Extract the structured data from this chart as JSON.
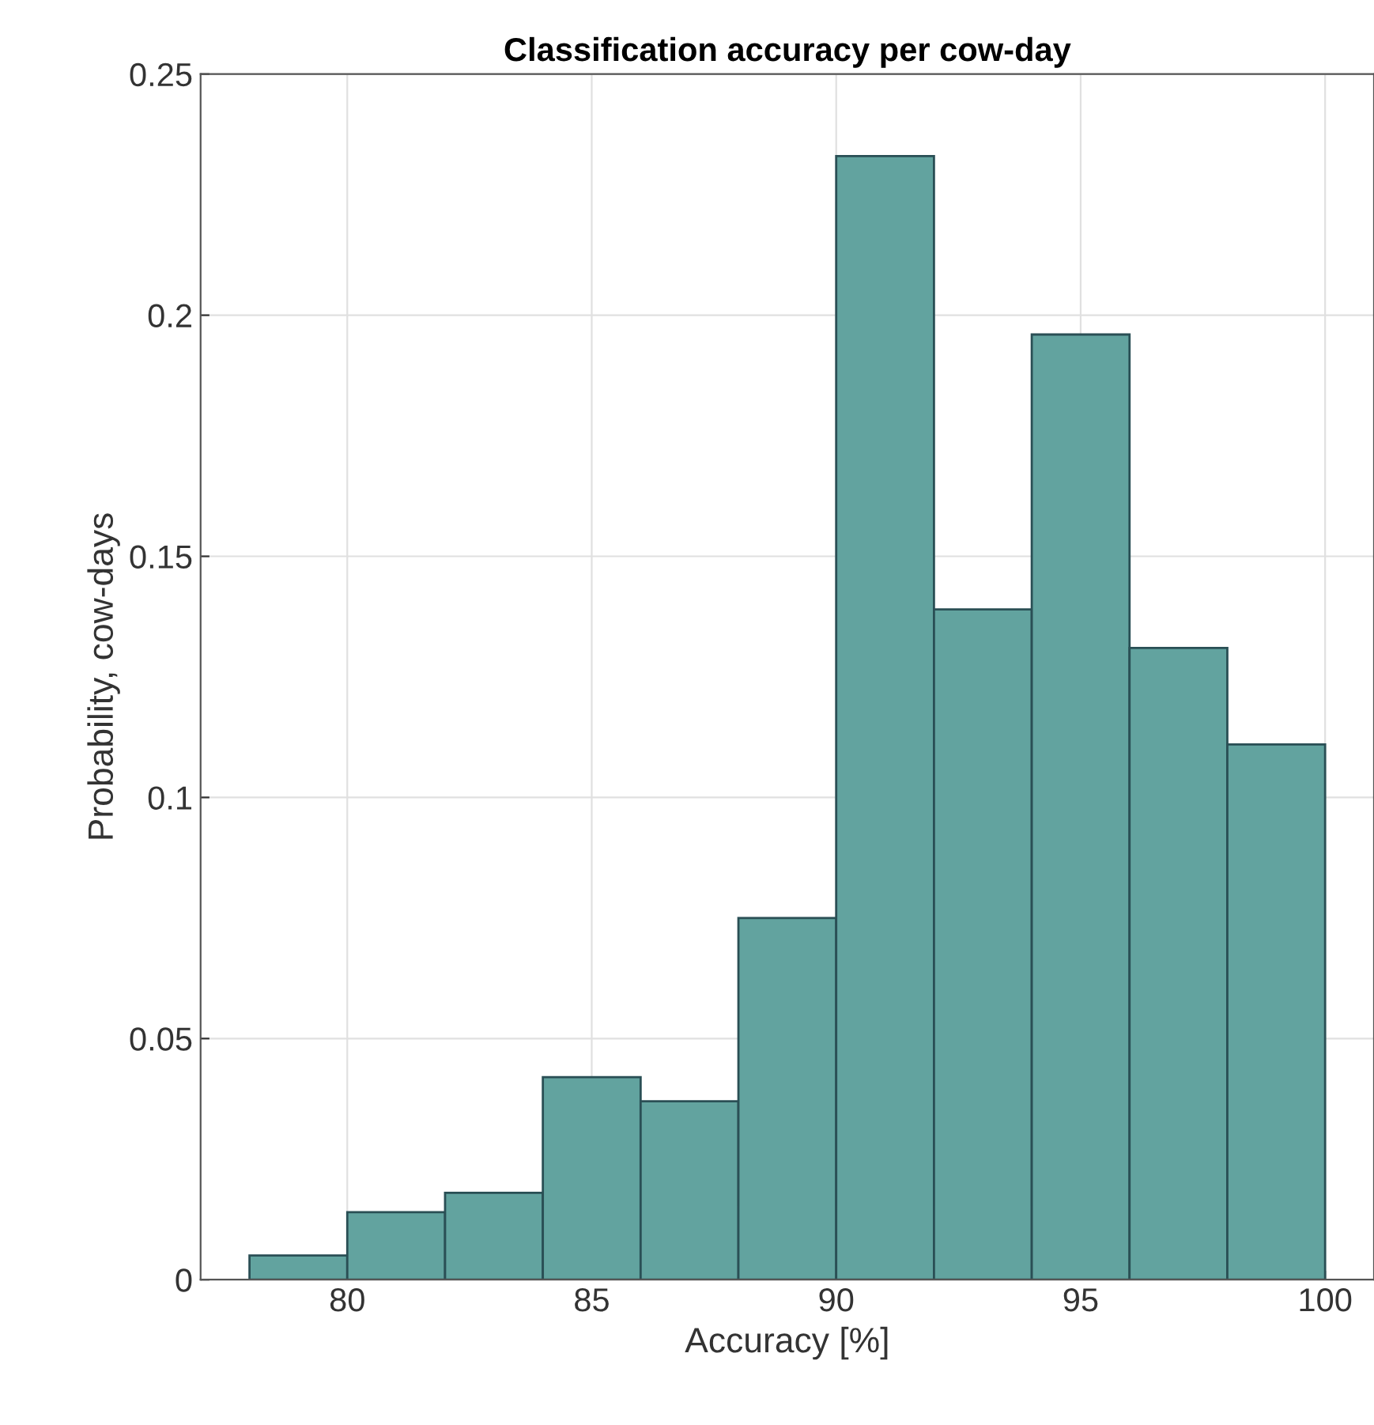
{
  "chart_data": {
    "type": "histogram",
    "title": "Classification accuracy per cow-day",
    "xlabel": "Accuracy [%]",
    "ylabel": "Probability, cow-days",
    "bins": [
      78,
      80,
      82,
      84,
      86,
      88,
      90,
      92,
      94,
      96,
      98,
      100
    ],
    "values": [
      0.005,
      0.014,
      0.018,
      0.042,
      0.037,
      0.075,
      0.233,
      0.139,
      0.196,
      0.131,
      0.111
    ],
    "color": "#62a39f",
    "xlim": [
      77,
      101
    ],
    "ylim": [
      0,
      0.25
    ],
    "xticks": [
      80,
      85,
      90,
      95,
      100
    ],
    "yticks": [
      0,
      0.05,
      0.1,
      0.15,
      0.2,
      0.25
    ],
    "grid": true
  }
}
